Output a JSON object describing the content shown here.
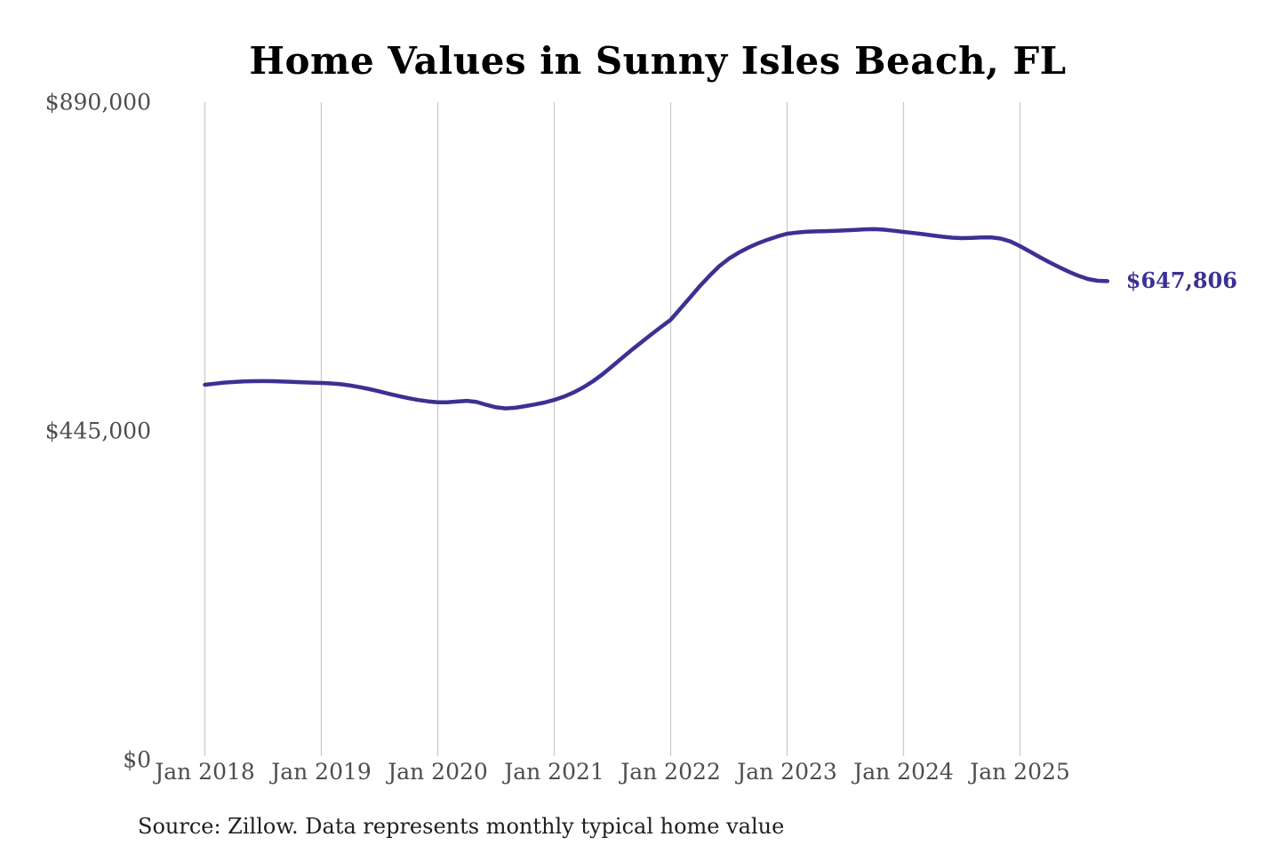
{
  "chart": {
    "title": "Home Values in Sunny Isles Beach, FL",
    "end_label": "$647,806",
    "source": "Source: Zillow. Data represents monthly typical home value",
    "line_color": "#3b3193",
    "grid_color": "#cbcbcb",
    "tick_color": "#4d4d4d",
    "title_color": "#000000",
    "background_color": "#ffffff"
  },
  "chart_data": {
    "type": "line",
    "title": "Home Values in Sunny Isles Beach, FL",
    "xlabel": "",
    "ylabel": "",
    "ylim": [
      0,
      890000
    ],
    "grid": "vertical-only",
    "legend": "none",
    "x_tick_labels": [
      "Jan 2018",
      "Jan 2019",
      "Jan 2020",
      "Jan 2021",
      "Jan 2022",
      "Jan 2023",
      "Jan 2024",
      "Jan 2025"
    ],
    "y_tick_labels": [
      "$890,000",
      "$445,000",
      "$0"
    ],
    "y_tick_values": [
      890000,
      445000,
      0
    ],
    "annotation": "$647,806",
    "last_value": 647806,
    "source": "Source: Zillow. Data represents monthly typical home value",
    "x": [
      "2018-01",
      "2018-02",
      "2018-03",
      "2018-04",
      "2018-05",
      "2018-06",
      "2018-07",
      "2018-08",
      "2018-09",
      "2018-10",
      "2018-11",
      "2018-12",
      "2019-01",
      "2019-02",
      "2019-03",
      "2019-04",
      "2019-05",
      "2019-06",
      "2019-07",
      "2019-08",
      "2019-09",
      "2019-10",
      "2019-11",
      "2019-12",
      "2020-01",
      "2020-02",
      "2020-03",
      "2020-04",
      "2020-05",
      "2020-06",
      "2020-07",
      "2020-08",
      "2020-09",
      "2020-10",
      "2020-11",
      "2020-12",
      "2021-01",
      "2021-02",
      "2021-03",
      "2021-04",
      "2021-05",
      "2021-06",
      "2021-07",
      "2021-08",
      "2021-09",
      "2021-10",
      "2021-11",
      "2021-12",
      "2022-01",
      "2022-02",
      "2022-03",
      "2022-04",
      "2022-05",
      "2022-06",
      "2022-07",
      "2022-08",
      "2022-09",
      "2022-10",
      "2022-11",
      "2022-12",
      "2023-01",
      "2023-02",
      "2023-03",
      "2023-04",
      "2023-05",
      "2023-06",
      "2023-07",
      "2023-08",
      "2023-09",
      "2023-10",
      "2023-11",
      "2023-12",
      "2024-01",
      "2024-02",
      "2024-03",
      "2024-04",
      "2024-05",
      "2024-06",
      "2024-07",
      "2024-08",
      "2024-09",
      "2024-10",
      "2024-11",
      "2024-12",
      "2025-01",
      "2025-02",
      "2025-03",
      "2025-04",
      "2025-05",
      "2025-06",
      "2025-07",
      "2025-08",
      "2025-09",
      "2025-10"
    ],
    "series": [
      {
        "name": "Typical home value",
        "values": [
          507500,
          509000,
          510400,
          511300,
          512000,
          512400,
          512500,
          512300,
          511900,
          511400,
          510900,
          510400,
          510000,
          509400,
          508300,
          506500,
          504200,
          501500,
          498400,
          495200,
          492100,
          489300,
          486900,
          485000,
          483700,
          483900,
          484800,
          485800,
          484200,
          480300,
          477000,
          475600,
          476400,
          478500,
          480800,
          483500,
          487000,
          491400,
          497100,
          504000,
          512300,
          522000,
          532800,
          543900,
          554800,
          565300,
          575600,
          585700,
          595500,
          610500,
          625500,
          641000,
          655000,
          668000,
          678200,
          686300,
          693100,
          699000,
          703900,
          708300,
          712000,
          713600,
          714600,
          715100,
          715500,
          715900,
          716500,
          717200,
          717900,
          718100,
          717400,
          716000,
          714400,
          713000,
          711400,
          709600,
          707900,
          706600,
          706000,
          706300,
          706900,
          707100,
          705400,
          701500,
          695200,
          688000,
          680600,
          673500,
          666900,
          660700,
          655100,
          650700,
          648300,
          647806
        ]
      }
    ]
  }
}
